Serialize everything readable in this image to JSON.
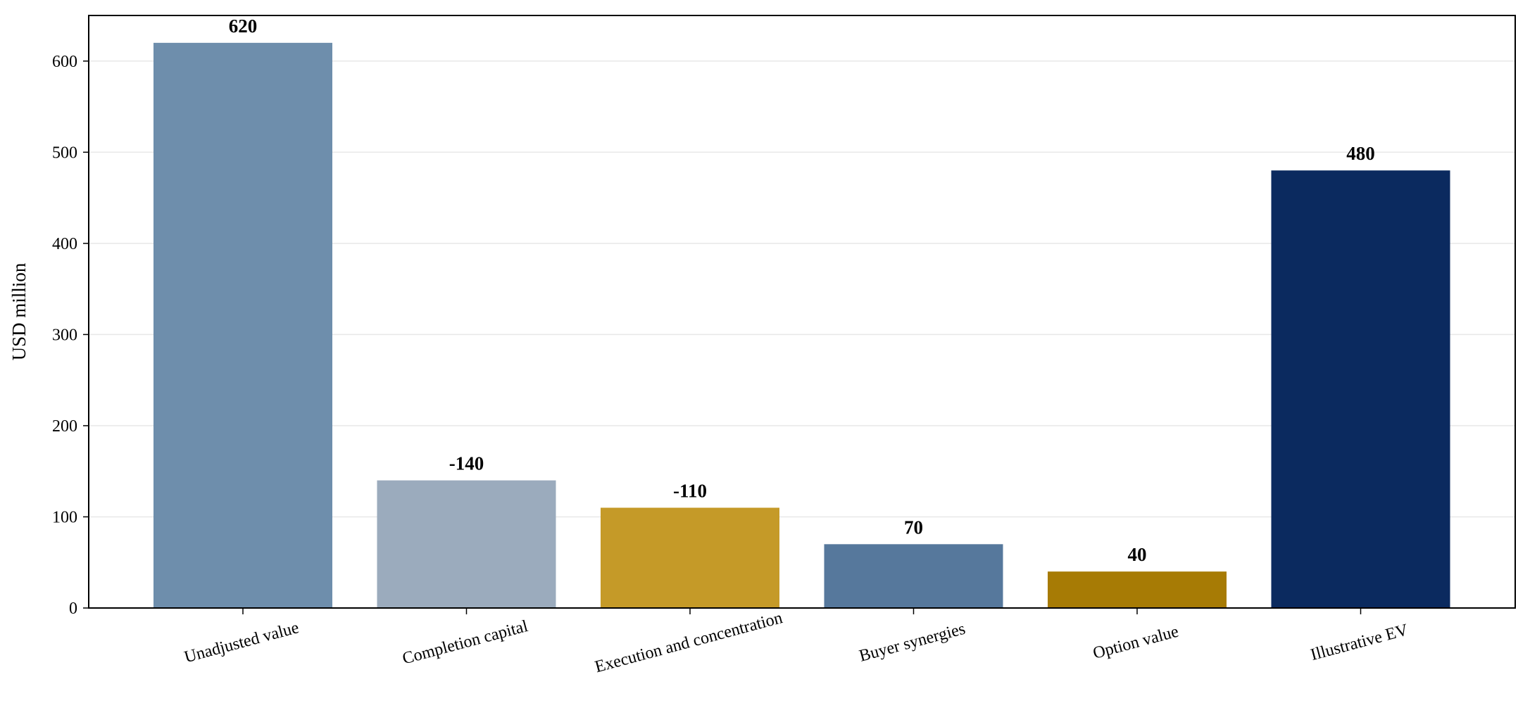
{
  "chart_data": {
    "type": "bar",
    "title": "",
    "xlabel": "",
    "ylabel": "USD million",
    "categories": [
      "Unadjusted value",
      "Completion capital",
      "Execution and concentration",
      "Buyer synergies",
      "Option value",
      "Illustrative EV"
    ],
    "values": [
      620,
      140,
      110,
      70,
      40,
      480
    ],
    "data_labels": [
      "620",
      "-140",
      "-110",
      "70",
      "40",
      "480"
    ],
    "bar_colors": [
      "#6e8eac",
      "#9babbd",
      "#c59a28",
      "#56789c",
      "#a77b05",
      "#0b2a5f"
    ],
    "ylim": [
      0,
      650
    ],
    "yticks": [
      0,
      100,
      200,
      300,
      400,
      500,
      600
    ],
    "grid": true,
    "grid_axis": "y",
    "legend": "none"
  }
}
